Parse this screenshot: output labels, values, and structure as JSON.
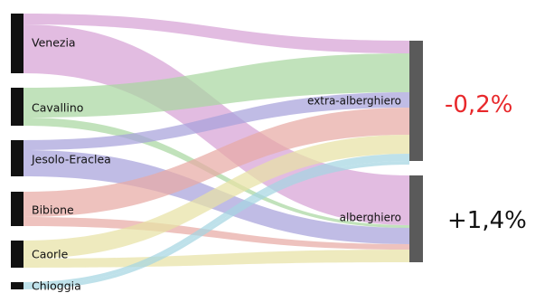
{
  "diagram": {
    "sources": [
      {
        "id": "venezia",
        "label": "Venezia"
      },
      {
        "id": "cavallino",
        "label": "Cavallino"
      },
      {
        "id": "jesolo",
        "label": "Jesolo-Eraclea"
      },
      {
        "id": "bibione",
        "label": "Bibione"
      },
      {
        "id": "caorle",
        "label": "Caorle"
      },
      {
        "id": "chioggia",
        "label": "Chioggia"
      }
    ],
    "targets": [
      {
        "id": "extra",
        "label": "extra-alberghiero",
        "change_label": "-0,2%",
        "change_color": "#e8282b"
      },
      {
        "id": "alberghiero",
        "label": "alberghiero",
        "change_label": "+1,4%",
        "change_color": "#111111"
      }
    ],
    "node_color": "#111111",
    "target_node_color": "#5a5a5a",
    "flow_colors": {
      "venezia": "#d7a2d6",
      "cavallino": "#a9d7a1",
      "jesolo": "#a8a2db",
      "bibione": "#e7aaa5",
      "caorle": "#e7e2a5",
      "chioggia": "#a5d6e2"
    }
  }
}
